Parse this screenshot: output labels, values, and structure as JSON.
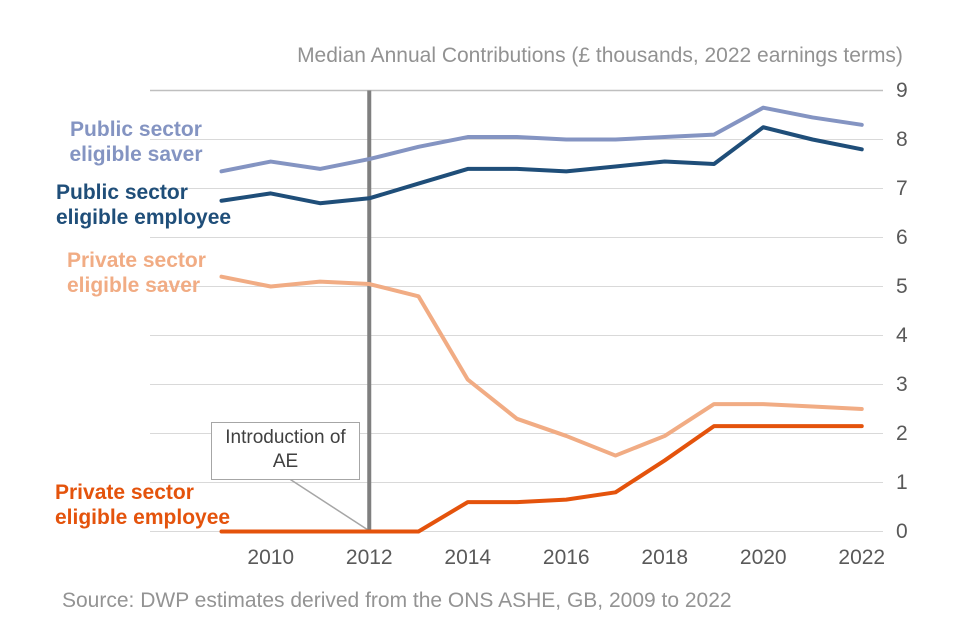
{
  "chart_data": {
    "type": "line",
    "title": "Median Annual Contributions (£ thousands, 2022 earnings terms)",
    "x": [
      2009,
      2010,
      2011,
      2012,
      2013,
      2014,
      2015,
      2016,
      2017,
      2018,
      2019,
      2020,
      2021,
      2022
    ],
    "series": [
      {
        "name": "Public sector eligible saver",
        "color": "#8494C2",
        "values": [
          7.35,
          7.55,
          7.4,
          7.6,
          7.85,
          8.05,
          8.05,
          8.0,
          8.0,
          8.05,
          8.1,
          8.65,
          8.45,
          8.3
        ]
      },
      {
        "name": "Public sector eligible employee",
        "color": "#1F4E79",
        "values": [
          6.75,
          6.9,
          6.7,
          6.8,
          7.1,
          7.4,
          7.4,
          7.35,
          7.45,
          7.55,
          7.5,
          8.25,
          8.0,
          7.8
        ]
      },
      {
        "name": "Private sector eligible saver",
        "color": "#F1AC84",
        "values": [
          5.2,
          5.0,
          5.1,
          5.05,
          4.8,
          3.1,
          2.3,
          1.95,
          1.55,
          1.95,
          2.6,
          2.6,
          2.55,
          2.5
        ]
      },
      {
        "name": "Private sector eligible employee",
        "color": "#E4530C",
        "values": [
          0.0,
          0.0,
          0.0,
          0.0,
          0.0,
          0.6,
          0.6,
          0.65,
          0.8,
          1.45,
          2.15,
          2.15,
          2.15,
          2.15
        ]
      }
    ],
    "ylim": [
      0,
      9
    ],
    "yticks": [
      0,
      1,
      2,
      3,
      4,
      5,
      6,
      7,
      8,
      9
    ],
    "xticks": [
      2010,
      2012,
      2014,
      2016,
      2018,
      2020,
      2022
    ],
    "grid": "horizontal",
    "legend_position": "direct-labels-left"
  },
  "labels": {
    "public_saver": "Public sector\neligible saver",
    "public_employee": "Public sector\neligible employee",
    "private_saver": "Private sector\neligible saver",
    "private_employee": "Private sector\neligible employee"
  },
  "annotation": {
    "text": "Introduction of\nAE",
    "year": 2012
  },
  "source": "Source: DWP estimates derived from the ONS ASHE, GB, 2009 to 2022",
  "colors": {
    "gridline": "#D9D9D9",
    "plot_top_border": "#BFBFBF",
    "vertical_marker": "#7F7F7F",
    "leader_line": "#A6A6A6",
    "title_text": "#929292",
    "tick_text": "#595959",
    "source_text": "#939393",
    "annotation_text": "#404040",
    "annotation_border": "#A6A6A6"
  }
}
